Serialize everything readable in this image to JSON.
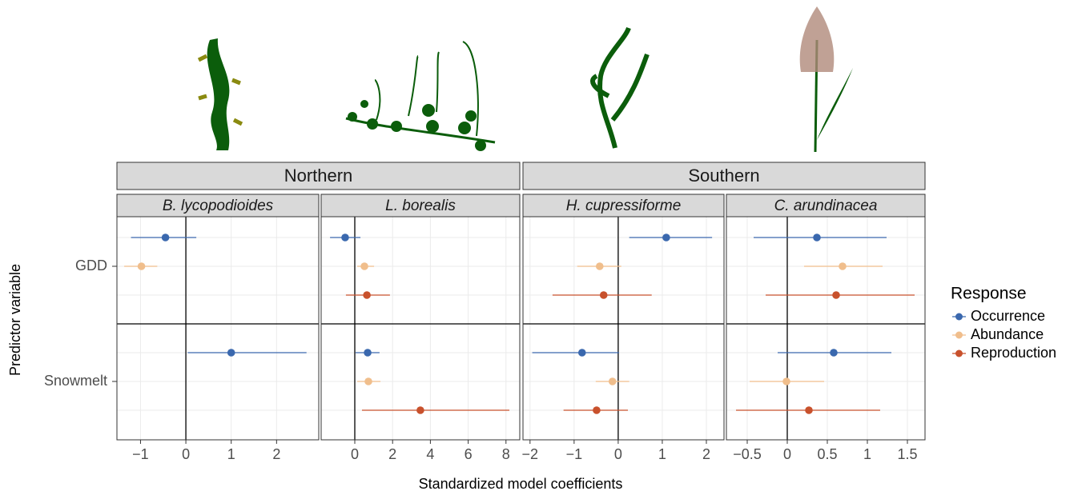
{
  "y_label": "Predictor variable",
  "x_label": "Standardized model coefficients",
  "categories": [
    "GDD",
    "Snowmelt"
  ],
  "groups": [
    {
      "label": "Northern",
      "panels": [
        0,
        1
      ]
    },
    {
      "label": "Southern",
      "panels": [
        2,
        3
      ]
    }
  ],
  "legend": {
    "title": "Response",
    "series": [
      {
        "name": "Occurrence",
        "color": "#3a68ae"
      },
      {
        "name": "Abundance",
        "color": "#f0be8c"
      },
      {
        "name": "Reproduction",
        "color": "#c8512c"
      }
    ]
  },
  "chart_data": [
    {
      "type": "forest",
      "title": "B. lycopodioides",
      "xlim": [
        -1.52,
        2.93
      ],
      "xticks": [
        {
          "value": -1,
          "label": "−1"
        },
        0,
        1,
        2
      ],
      "grid": true,
      "series": [
        {
          "values": [
            -0.45,
            1.0
          ],
          "ci_low": [
            -1.21,
            0.04
          ],
          "ci_high": [
            0.23,
            2.66
          ]
        },
        {
          "values": [
            -0.98,
            null
          ],
          "ci_low": [
            -1.36,
            null
          ],
          "ci_high": [
            -0.63,
            null
          ]
        },
        {
          "values": [
            null,
            null
          ],
          "ci_low": [
            null,
            null
          ],
          "ci_high": [
            null,
            null
          ]
        }
      ]
    },
    {
      "type": "forest",
      "title": "L. borealis",
      "xlim": [
        -1.78,
        8.73
      ],
      "xticks": [
        0,
        2,
        4,
        6,
        8
      ],
      "grid": true,
      "series": [
        {
          "values": [
            -0.51,
            0.68
          ],
          "ci_low": [
            -1.31,
            0.04
          ],
          "ci_high": [
            0.3,
            1.31
          ]
        },
        {
          "values": [
            0.51,
            0.72
          ],
          "ci_low": [
            0.13,
            0.13
          ],
          "ci_high": [
            1.02,
            1.36
          ]
        },
        {
          "values": [
            0.64,
            3.47
          ],
          "ci_low": [
            -0.47,
            0.38
          ],
          "ci_high": [
            1.86,
            8.18
          ]
        }
      ]
    },
    {
      "type": "forest",
      "title": "H. cupressiforme",
      "xlim": [
        -2.16,
        2.4
      ],
      "xticks": [
        {
          "value": -2,
          "label": "−2"
        },
        {
          "value": -1,
          "label": "−1"
        },
        0,
        1,
        2
      ],
      "grid": true,
      "series": [
        {
          "values": [
            1.09,
            -0.82
          ],
          "ci_low": [
            0.25,
            -1.95
          ],
          "ci_high": [
            2.13,
            0.02
          ]
        },
        {
          "values": [
            -0.42,
            -0.13
          ],
          "ci_low": [
            -0.93,
            -0.51
          ],
          "ci_high": [
            0.07,
            0.25
          ]
        },
        {
          "values": [
            -0.33,
            -0.49
          ],
          "ci_low": [
            -1.49,
            -1.24
          ],
          "ci_high": [
            0.76,
            0.22
          ]
        }
      ]
    },
    {
      "type": "forest",
      "title": "C. arundinacea",
      "xlim": [
        -0.76,
        1.72
      ],
      "xticks": [
        {
          "value": -0.5,
          "label": "−0.5"
        },
        0,
        0.5,
        1,
        1.5
      ],
      "grid": true,
      "series": [
        {
          "values": [
            0.37,
            0.58
          ],
          "ci_low": [
            -0.42,
            -0.12
          ],
          "ci_high": [
            1.24,
            1.3
          ]
        },
        {
          "values": [
            0.69,
            -0.01
          ],
          "ci_low": [
            0.21,
            -0.47
          ],
          "ci_high": [
            1.19,
            0.46
          ]
        },
        {
          "values": [
            0.61,
            0.27
          ],
          "ci_low": [
            -0.27,
            -0.64
          ],
          "ci_high": [
            1.59,
            1.16
          ]
        }
      ]
    }
  ]
}
